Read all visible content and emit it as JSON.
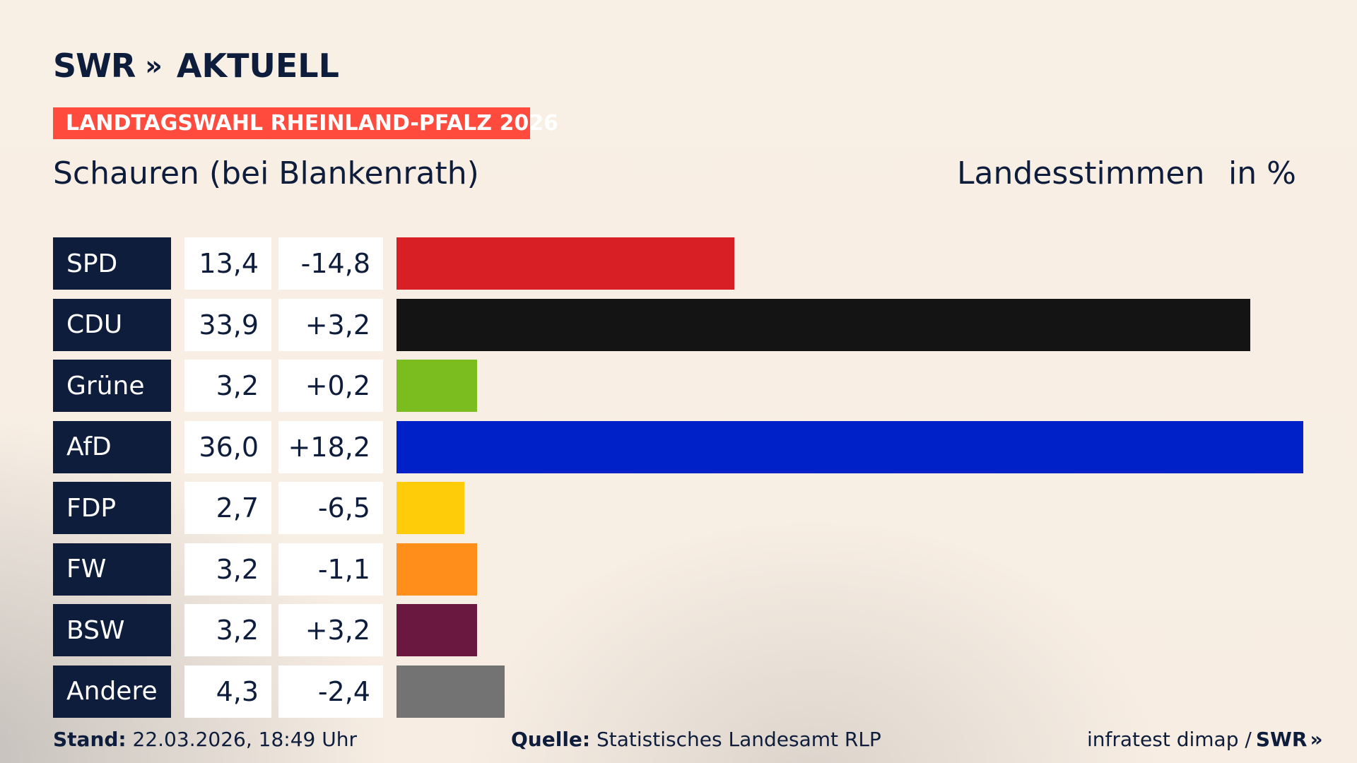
{
  "header": {
    "logo_swr": "SWR",
    "logo_chevrons": "»",
    "logo_aktuell": "AKTUELL",
    "badge": "LANDTAGSWAHL RHEINLAND-PFALZ 2026",
    "place": "Schauren (bei Blankenrath)",
    "metric": "Landesstimmen",
    "unit": "in %"
  },
  "colors": {
    "navy": "#0e1d3b",
    "badge": "#ff4b3d",
    "background": "#f8efe5"
  },
  "chart_data": {
    "type": "bar",
    "orientation": "horizontal",
    "xlim": [
      0,
      36.0
    ],
    "categories": [
      "SPD",
      "CDU",
      "Grüne",
      "AfD",
      "FDP",
      "FW",
      "BSW",
      "Andere"
    ],
    "values": [
      13.4,
      33.9,
      3.2,
      36.0,
      2.7,
      3.2,
      3.2,
      4.3
    ],
    "value_labels": [
      "13,4",
      "33,9",
      "3,2",
      "36,0",
      "2,7",
      "3,2",
      "3,2",
      "4,3"
    ],
    "diff_labels": [
      "-14,8",
      "+3,2",
      "+0,2",
      "+18,2",
      "-6,5",
      "-1,1",
      "+3,2",
      "-2,4"
    ],
    "colors": [
      "#d81f26",
      "#141414",
      "#7bbd1f",
      "#0020c8",
      "#ffcc0a",
      "#ff8f1a",
      "#6a1840",
      "#737373"
    ]
  },
  "footer": {
    "stand_label": "Stand:",
    "stand_value": "22.03.2026, 18:49 Uhr",
    "quelle_label": "Quelle:",
    "quelle_value": "Statistisches Landesamt RLP",
    "credit": "infratest dimap /",
    "credit_swr": "SWR",
    "credit_chev": "»"
  }
}
